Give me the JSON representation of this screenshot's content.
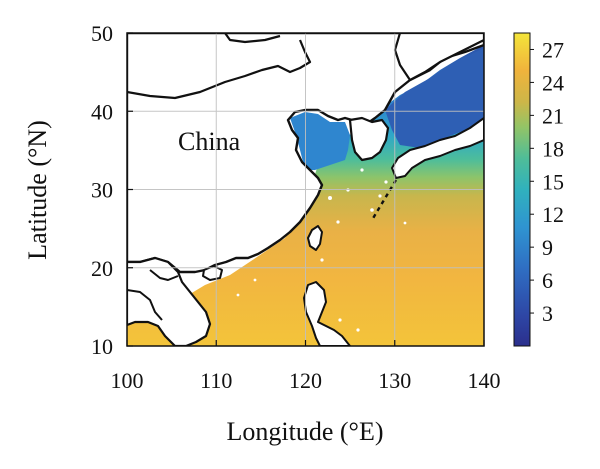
{
  "map": {
    "region_label": "China",
    "xlabel": "Longitude (°E)",
    "ylabel": "Latitude (°N)",
    "x_ticks": [
      "100",
      "110",
      "120",
      "130",
      "140"
    ],
    "y_ticks": [
      "10",
      "20",
      "30",
      "40",
      "50"
    ],
    "xlim": [
      100,
      140
    ],
    "ylim": [
      10,
      50
    ],
    "grid": true
  },
  "colorbar": {
    "ticks": [
      "3",
      "6",
      "9",
      "12",
      "15",
      "18",
      "21",
      "24",
      "27"
    ],
    "range": [
      0,
      28.5
    ],
    "colors": [
      "#2b2f8c",
      "#2f64b8",
      "#2f8fd0",
      "#2fb0c0",
      "#49bd9e",
      "#86c66f",
      "#c8b84a",
      "#f0b040",
      "#f4e23a"
    ]
  },
  "colors": {
    "land": "#ffffff",
    "coast": "#111111",
    "grid": "#bfbfbf",
    "axes": "#111111"
  }
}
